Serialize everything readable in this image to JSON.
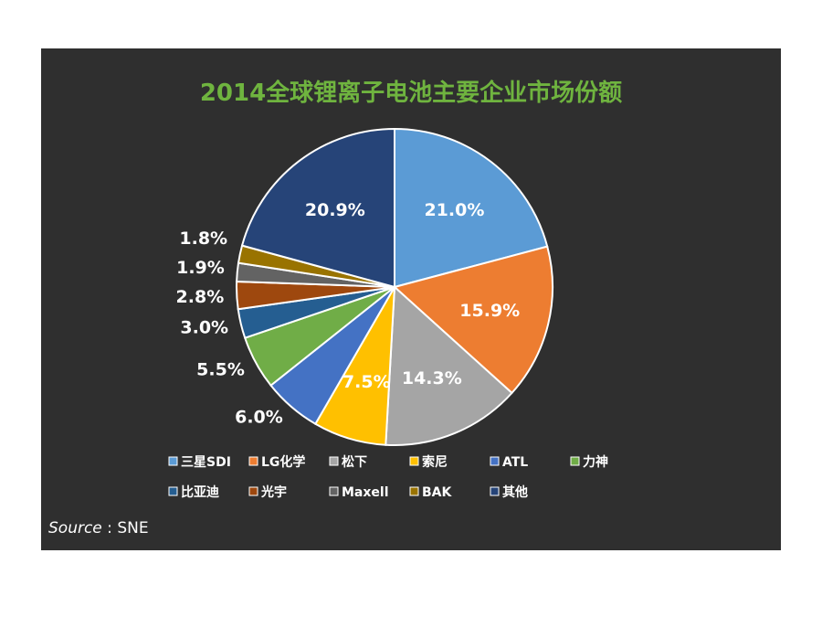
{
  "chart_data": {
    "type": "pie",
    "title": "2014全球锂离子电池主要企业市场份额",
    "title_color": "#6fb43f",
    "source_label": "Source",
    "source_value": "SNE",
    "slices": [
      {
        "name": "三星SDI",
        "value": 21.0,
        "label": "21.0%",
        "color": "#5b9bd5"
      },
      {
        "name": "LG化学",
        "value": 15.9,
        "label": "15.9%",
        "color": "#ed7d31"
      },
      {
        "name": "松下",
        "value": 14.3,
        "label": "14.3%",
        "color": "#a5a5a5"
      },
      {
        "name": "索尼",
        "value": 7.5,
        "label": "7.5%",
        "color": "#ffc000"
      },
      {
        "name": "ATL",
        "value": 6.0,
        "label": "6.0%",
        "color": "#4472c4"
      },
      {
        "name": "力神",
        "value": 5.5,
        "label": "5.5%",
        "color": "#70ad47"
      },
      {
        "name": "比亚迪",
        "value": 3.0,
        "label": "3.0%",
        "color": "#255e91"
      },
      {
        "name": "光宇",
        "value": 2.8,
        "label": "2.8%",
        "color": "#9e480e"
      },
      {
        "name": "Maxell",
        "value": 1.9,
        "label": "1.9%",
        "color": "#636363"
      },
      {
        "name": "BAK",
        "value": 1.8,
        "label": "1.8%",
        "color": "#997300"
      },
      {
        "name": "其他",
        "value": 20.9,
        "label": "20.9%",
        "color": "#264478"
      }
    ],
    "legend_position": "bottom"
  }
}
